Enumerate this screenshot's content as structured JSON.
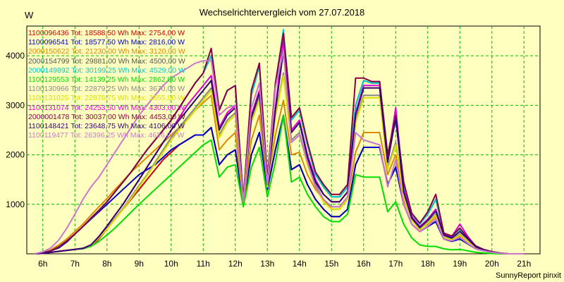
{
  "chart_data": {
    "type": "line",
    "title": "Wechselrichtervergleich vom 27.07.2018",
    "ylabel": "W",
    "xlim": [
      5.5,
      21.5
    ],
    "ylim": [
      0,
      4600
    ],
    "y_ticks": [
      1000,
      2000,
      3000,
      4000
    ],
    "x_tick_labels": [
      "6h",
      "7h",
      "8h",
      "9h",
      "10h",
      "11h",
      "12h",
      "13h",
      "14h",
      "15h",
      "16h",
      "17h",
      "18h",
      "19h",
      "20h",
      "21h"
    ],
    "grid": true,
    "legend_position": "top-left",
    "footer": "SunnyReport pinxit",
    "x": [
      5.75,
      6.0,
      6.25,
      6.5,
      6.75,
      7.0,
      7.25,
      7.5,
      7.75,
      8.0,
      8.25,
      8.5,
      8.75,
      9.0,
      9.25,
      9.5,
      9.75,
      10.0,
      10.25,
      10.5,
      10.75,
      11.0,
      11.25,
      11.5,
      11.75,
      12.0,
      12.25,
      12.5,
      12.75,
      13.0,
      13.25,
      13.5,
      13.75,
      14.0,
      14.25,
      14.5,
      14.75,
      15.0,
      15.25,
      15.5,
      15.75,
      16.0,
      16.25,
      16.5,
      16.75,
      17.0,
      17.25,
      17.5,
      17.75,
      18.0,
      18.25,
      18.5,
      18.75,
      19.0,
      19.25,
      19.5,
      19.75,
      20.0,
      20.25,
      20.5,
      20.75,
      21.0
    ],
    "series": [
      {
        "name": "1100096436 Tot: 18588,50 Wh Max: 2754,00 W",
        "color": "#cc0000",
        "values": [
          0,
          10,
          30,
          50,
          70,
          90,
          110,
          150,
          300,
          500,
          700,
          900,
          1100,
          1300,
          1500,
          1700,
          1900,
          2050,
          2200,
          2300,
          2400,
          2400,
          2550,
          1800,
          2000,
          2100,
          1000,
          2000,
          2450,
          1300,
          2100,
          2750,
          1700,
          1800,
          1400,
          1100,
          900,
          750,
          750,
          900,
          1800,
          2150,
          2150,
          2150,
          1400,
          1750,
          1000,
          600,
          450,
          550,
          650,
          300,
          250,
          300,
          200,
          100,
          60,
          30,
          10,
          0,
          0,
          0
        ]
      },
      {
        "name": "1100096541 Tot: 18577,50 Wh Max: 2816,00 W",
        "color": "#0000cc",
        "values": [
          0,
          20,
          60,
          120,
          240,
          400,
          550,
          700,
          850,
          1000,
          1150,
          1300,
          1450,
          1600,
          1700,
          1800,
          1950,
          2100,
          2200,
          2300,
          2400,
          2400,
          2550,
          1800,
          2000,
          2100,
          1000,
          2000,
          2450,
          1300,
          2100,
          2800,
          1700,
          1800,
          1400,
          1100,
          900,
          750,
          750,
          900,
          1800,
          2150,
          2150,
          2150,
          1400,
          1750,
          1000,
          600,
          450,
          550,
          650,
          300,
          250,
          300,
          200,
          100,
          60,
          30,
          10,
          0,
          0,
          0
        ]
      },
      {
        "name": "2000150622 Tot: 21230,00 Wh Max: 3120,00 W",
        "color": "#dd8800",
        "values": [
          0,
          20,
          80,
          180,
          300,
          450,
          600,
          780,
          950,
          1120,
          1300,
          1470,
          1650,
          1800,
          1950,
          2100,
          2250,
          2400,
          2550,
          2700,
          2900,
          3050,
          3200,
          2100,
          2300,
          2450,
          1000,
          2300,
          2800,
          1400,
          2400,
          3100,
          2000,
          2050,
          1600,
          1300,
          1100,
          900,
          900,
          1100,
          2050,
          2450,
          2450,
          2450,
          1600,
          2000,
          1100,
          700,
          500,
          600,
          750,
          350,
          280,
          350,
          220,
          110,
          70,
          35,
          10,
          0,
          0,
          0
        ]
      },
      {
        "name": "2000154799 Tot: 29881,00 Wh Max: 4500,00 W",
        "color": "#555555",
        "values": [
          0,
          20,
          60,
          140,
          260,
          400,
          550,
          720,
          880,
          1050,
          1250,
          1450,
          1650,
          1880,
          2100,
          2300,
          2500,
          2700,
          2950,
          3200,
          3450,
          3650,
          4000,
          2900,
          3300,
          3400,
          1100,
          3200,
          3800,
          1500,
          3400,
          4450,
          2700,
          2900,
          2200,
          1600,
          1350,
          1150,
          1150,
          1350,
          3000,
          3500,
          3450,
          3450,
          2000,
          2700,
          1400,
          800,
          600,
          800,
          1100,
          400,
          350,
          500,
          300,
          150,
          80,
          40,
          15,
          0,
          0,
          0
        ]
      },
      {
        "name": "2000149892 Tot: 30199,25 Wh Max: 4529,00 W",
        "color": "#00cccc",
        "values": [
          0,
          20,
          60,
          140,
          260,
          400,
          550,
          720,
          880,
          1050,
          1250,
          1450,
          1650,
          1880,
          2100,
          2300,
          2500,
          2700,
          2950,
          3200,
          3450,
          3650,
          4000,
          2900,
          3300,
          3400,
          1100,
          3200,
          3800,
          1500,
          3400,
          4529,
          2700,
          2900,
          2200,
          1600,
          1350,
          1150,
          1150,
          1350,
          3000,
          3500,
          3450,
          3450,
          2000,
          2700,
          1400,
          800,
          600,
          800,
          1100,
          400,
          350,
          500,
          300,
          150,
          80,
          40,
          15,
          0,
          0,
          0
        ]
      },
      {
        "name": "1100129553 Tot: 14139,25 Wh Max: 2862,00 W",
        "color": "#00dd00",
        "values": [
          0,
          10,
          30,
          50,
          70,
          90,
          100,
          150,
          250,
          380,
          520,
          680,
          840,
          1000,
          1150,
          1300,
          1450,
          1600,
          1750,
          1900,
          2050,
          2200,
          2300,
          1550,
          1750,
          1800,
          950,
          1750,
          2150,
          1150,
          1850,
          2800,
          1450,
          1550,
          1200,
          950,
          750,
          650,
          650,
          800,
          1600,
          1550,
          1550,
          1550,
          850,
          1050,
          600,
          320,
          180,
          150,
          150,
          100,
          80,
          90,
          60,
          30,
          15,
          5,
          0,
          0,
          0,
          0
        ]
      },
      {
        "name": "1100130966 Tot: 22879,25 Wh Max: 3670,00 W",
        "color": "#888888",
        "values": [
          0,
          10,
          30,
          50,
          70,
          90,
          110,
          180,
          330,
          520,
          720,
          920,
          1150,
          1380,
          1600,
          1850,
          2100,
          2350,
          2550,
          2750,
          2950,
          3150,
          3350,
          2400,
          2700,
          2850,
          1050,
          2700,
          3150,
          1350,
          2800,
          3650,
          2300,
          2450,
          1850,
          1400,
          1100,
          950,
          950,
          1150,
          2700,
          3200,
          3200,
          3200,
          1750,
          2250,
          1200,
          700,
          500,
          650,
          800,
          350,
          300,
          400,
          250,
          120,
          70,
          35,
          10,
          0,
          0,
          0
        ]
      },
      {
        "name": "1100131025 Tot: 22878,75 Wh Max: 3655,00 W",
        "color": "#dddd00",
        "values": [
          0,
          10,
          30,
          50,
          70,
          90,
          110,
          170,
          320,
          500,
          700,
          900,
          1120,
          1350,
          1580,
          1820,
          2060,
          2300,
          2500,
          2700,
          2900,
          3100,
          3300,
          2350,
          2650,
          2800,
          1050,
          2650,
          3100,
          1350,
          2750,
          3600,
          2250,
          2400,
          1800,
          1350,
          1050,
          900,
          900,
          1100,
          2650,
          3150,
          3150,
          3150,
          1700,
          2200,
          1150,
          680,
          480,
          620,
          780,
          330,
          280,
          380,
          240,
          110,
          65,
          30,
          10,
          0,
          0,
          0
        ]
      },
      {
        "name": "1100131074 Tot: 24253,50 Wh Max: 4303,00 W",
        "color": "#dd00dd",
        "values": [
          0,
          10,
          30,
          50,
          70,
          90,
          110,
          180,
          350,
          560,
          780,
          1000,
          1250,
          1500,
          1750,
          2000,
          2250,
          2500,
          2750,
          3000,
          3200,
          3400,
          3600,
          2550,
          2850,
          3000,
          1100,
          2800,
          3300,
          1400,
          2950,
          4300,
          2500,
          2700,
          2000,
          1500,
          1200,
          1050,
          1050,
          1250,
          2850,
          3400,
          3400,
          3400,
          1900,
          2950,
          1300,
          750,
          550,
          700,
          900,
          400,
          350,
          600,
          350,
          150,
          80,
          40,
          15,
          0,
          0,
          0
        ]
      },
      {
        "name": "2000001478 Tot: 30037,00 Wh Max: 4453,00 W",
        "color": "#880044",
        "values": [
          0,
          20,
          60,
          140,
          260,
          400,
          550,
          720,
          880,
          1050,
          1250,
          1450,
          1650,
          1880,
          2100,
          2300,
          2500,
          2700,
          2950,
          3200,
          3450,
          3650,
          4150,
          2900,
          3300,
          3400,
          1100,
          3300,
          3850,
          1500,
          3450,
          4453,
          2750,
          2950,
          2250,
          1650,
          1400,
          1200,
          1200,
          1400,
          3550,
          3550,
          3480,
          3480,
          2000,
          2800,
          1450,
          820,
          620,
          850,
          1200,
          420,
          360,
          520,
          320,
          160,
          85,
          45,
          15,
          0,
          0,
          0
        ]
      },
      {
        "name": "1100148421 Tot: 23648,75 Wh Max: 4106,00 W",
        "color": "#330077",
        "values": [
          0,
          10,
          30,
          50,
          70,
          90,
          110,
          180,
          350,
          560,
          780,
          1000,
          1250,
          1500,
          1750,
          2000,
          2250,
          2500,
          2700,
          2900,
          3100,
          3300,
          3500,
          2500,
          2800,
          2950,
          1100,
          2750,
          3250,
          1400,
          2900,
          4100,
          2450,
          2650,
          1950,
          1450,
          1200,
          1050,
          1050,
          1250,
          2800,
          3350,
          3350,
          3350,
          1850,
          2750,
          1250,
          720,
          530,
          680,
          860,
          380,
          320,
          450,
          300,
          140,
          75,
          38,
          12,
          0,
          0,
          0
        ]
      },
      {
        "name": "1100119477 Tot: 26396,25 Wh Max: 4626,00 W",
        "color": "#cc77cc",
        "values": [
          0,
          40,
          120,
          280,
          520,
          800,
          1100,
          1350,
          1550,
          1800,
          2050,
          2300,
          2550,
          2800,
          3000,
          3200,
          3400,
          3550,
          3650,
          3750,
          3850,
          3900,
          3900,
          2800,
          2950,
          3000,
          1050,
          2950,
          3450,
          1400,
          3350,
          4100,
          2250,
          2400,
          1850,
          1350,
          1100,
          950,
          950,
          1150,
          2450,
          2300,
          2250,
          2200,
          1350,
          1900,
          1000,
          600,
          450,
          560,
          700,
          300,
          260,
          330,
          210,
          100,
          60,
          30,
          10,
          0,
          0,
          0
        ]
      }
    ]
  }
}
